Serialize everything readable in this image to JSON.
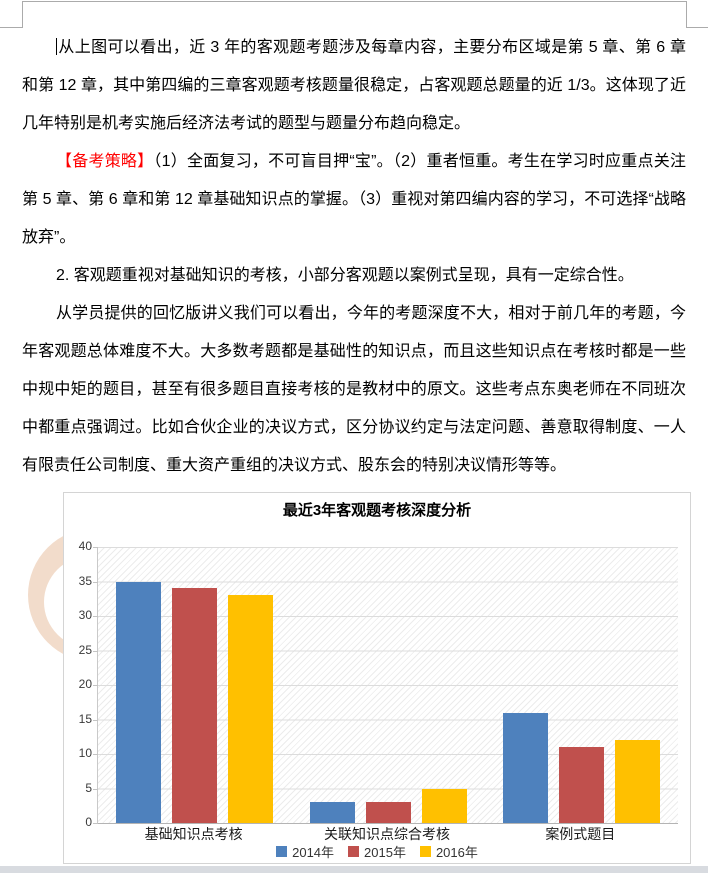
{
  "document": {
    "paragraphs": [
      {
        "text": "从上图可以看出，近 3 年的客观题考题涉及每章内容，主要分布区域是第 5 章、第 6 章和第 12 章，其中第四编的三章客观题考核题量很稳定，占客观题总题量的近 1/3。这体现了近几年特别是机考实施后经济法考试的题型与题量分布趋向稳定。"
      },
      {
        "label": "【备考策略】",
        "label_color": "#ff0000",
        "text": "（1）全面复习，不可盲目押“宝”。（2）重者恒重。考生在学习时应重点关注第 5 章、第 6 章和第 12 章基础知识点的掌握。（3）重视对第四编内容的学习，不可选择“战略放弃”。"
      },
      {
        "text": "2. 客观题重视对基础知识的考核，小部分客观题以案例式呈现，具有一定综合性。"
      },
      {
        "text": "从学员提供的回忆版讲义我们可以看出，今年的考题深度不大，相对于前几年的考题，今年客观题总体难度不大。大多数考题都是基础性的知识点，而且这些知识点在考核时都是一些中规中矩的题目，甚至有很多题目直接考核的是教材中的原文。这些考点东奥老师在不同班次中都重点强调过。比如合伙企业的决议方式，区分协议约定与法定问题、善意取得制度、一人有限责任公司制度、重大资产重组的决议方式、股东会的特别决议情形等等。"
      }
    ]
  },
  "chart_data": {
    "type": "bar",
    "title": "最近3年客观题考核深度分析",
    "categories": [
      "基础知识点考核",
      "关联知识点综合考核",
      "案例式题目"
    ],
    "series": [
      {
        "name": "2014年",
        "color": "#4E81BD",
        "values": [
          35,
          3,
          16
        ]
      },
      {
        "name": "2015年",
        "color": "#C0504D",
        "values": [
          34,
          3,
          11
        ]
      },
      {
        "name": "2016年",
        "color": "#FFC000",
        "values": [
          33,
          5,
          12
        ]
      }
    ],
    "ylim": [
      0,
      40
    ],
    "ytick_step": 5,
    "yticks": [
      0,
      5,
      10,
      15,
      20,
      25,
      30,
      35,
      40
    ],
    "grid": true,
    "plot_fill": "diagonal-hatch",
    "legend_position": "bottom"
  },
  "decor": {
    "ring_color": "#f2dccb",
    "bottom_strip_color": "#d8dbe0"
  }
}
